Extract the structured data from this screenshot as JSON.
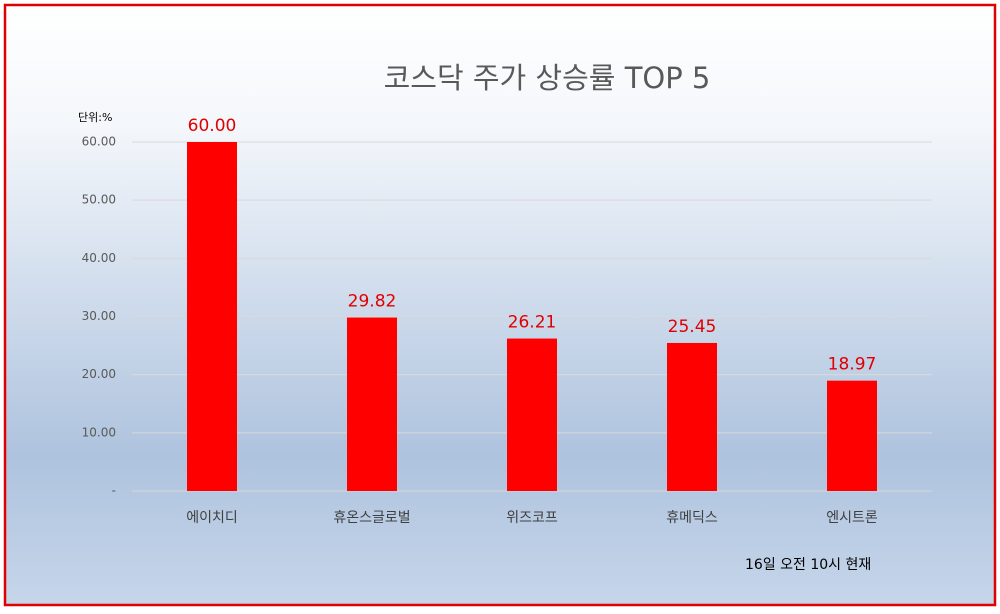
{
  "chart_data": {
    "type": "bar",
    "title": "코스닥 주가 상승률 TOP 5",
    "unit_label": "단위:%",
    "note": "16일 오전 10시 현재",
    "categories": [
      "에이치디",
      "휴온스글로벌",
      "위즈코프",
      "휴메딕스",
      "엔시트론"
    ],
    "values": [
      60,
      29.82,
      26.21,
      25.45,
      18.97
    ],
    "value_labels": [
      "60.00",
      "29.82",
      "26.21",
      "25.45",
      "18.97"
    ],
    "color": "#ff0000",
    "ylim": [
      0,
      60
    ],
    "yticks": [
      {
        "value": 0,
        "label": "-"
      },
      {
        "value": 10,
        "label": "10.00"
      },
      {
        "value": 20,
        "label": "20.00"
      },
      {
        "value": 30,
        "label": "30.00"
      },
      {
        "value": 40,
        "label": "40.00"
      },
      {
        "value": 50,
        "label": "50.00"
      },
      {
        "value": 60,
        "label": "60.00"
      }
    ],
    "grid": true
  }
}
